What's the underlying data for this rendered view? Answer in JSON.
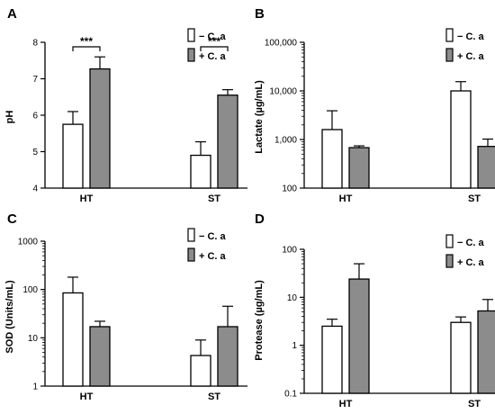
{
  "chart_data": [
    {
      "panel": "A",
      "type": "bar",
      "categories": [
        "HT",
        "ST"
      ],
      "ylabel": "pH",
      "yscale": "linear",
      "ylim": [
        4,
        8
      ],
      "yticks": [
        "4",
        "5",
        "6",
        "7",
        "8"
      ],
      "series": [
        {
          "name": "− C. a",
          "values": [
            5.75,
            4.9
          ],
          "errors": [
            0.35,
            0.37
          ],
          "color": "#ffffff"
        },
        {
          "name": "+ C. a",
          "values": [
            7.27,
            6.55
          ],
          "errors": [
            0.33,
            0.15
          ],
          "color": "#8c8c8c"
        }
      ],
      "significance": [
        "***",
        "***"
      ],
      "legend": "top-right"
    },
    {
      "panel": "B",
      "type": "bar",
      "categories": [
        "HT",
        "ST"
      ],
      "ylabel": "Lactate (µg/mL)",
      "yscale": "log",
      "ylim": [
        100,
        100000
      ],
      "yticks": [
        "100",
        "1,000",
        "10,000",
        "100,000"
      ],
      "series": [
        {
          "name": "− C. a",
          "values": [
            1600,
            10000
          ],
          "errors": [
            2300,
            5500
          ],
          "color": "#ffffff"
        },
        {
          "name": "+ C. a",
          "values": [
            680,
            720
          ],
          "errors": [
            60,
            300
          ],
          "color": "#8c8c8c"
        }
      ],
      "legend": "top-right"
    },
    {
      "panel": "C",
      "type": "bar",
      "categories": [
        "HT",
        "ST"
      ],
      "ylabel": "SOD (Units/mL)",
      "yscale": "log",
      "ylim": [
        1,
        1000
      ],
      "yticks": [
        "1",
        "10",
        "100",
        "1000"
      ],
      "series": [
        {
          "name": "− C. a",
          "values": [
            85,
            4.3
          ],
          "errors": [
            95,
            4.7
          ],
          "color": "#ffffff"
        },
        {
          "name": "+ C. a",
          "values": [
            17,
            17
          ],
          "errors": [
            5,
            28
          ],
          "color": "#8c8c8c"
        }
      ],
      "legend": "top-right"
    },
    {
      "panel": "D",
      "type": "bar",
      "categories": [
        "HT",
        "ST"
      ],
      "ylabel": "Protease (µg/mL)",
      "yscale": "log",
      "ylim": [
        0.1,
        100
      ],
      "yticks": [
        "0.1",
        "1",
        "10",
        "100"
      ],
      "series": [
        {
          "name": "− C. a",
          "values": [
            2.5,
            3.0
          ],
          "errors": [
            1.0,
            0.9
          ],
          "color": "#ffffff"
        },
        {
          "name": "+ C. a",
          "values": [
            24,
            5.2
          ],
          "errors": [
            26,
            3.8
          ],
          "color": "#8c8c8c"
        }
      ],
      "legend": "top-right"
    }
  ]
}
